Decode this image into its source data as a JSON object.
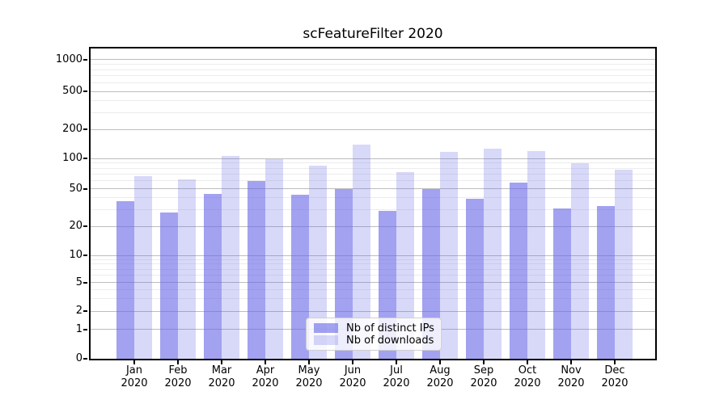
{
  "title": "scFeatureFilter 2020",
  "legend": {
    "items": [
      {
        "label": "Nb of distinct IPs",
        "color": "rgba(100,100,230,0.60)"
      },
      {
        "label": "Nb of downloads",
        "color": "rgba(100,100,230,0.25)"
      }
    ]
  },
  "y_axis": {
    "ticks": [
      0,
      1,
      2,
      5,
      10,
      20,
      50,
      100,
      200,
      500,
      1000
    ]
  },
  "x_axis": {
    "months": [
      "Jan",
      "Feb",
      "Mar",
      "Apr",
      "May",
      "Jun",
      "Jul",
      "Aug",
      "Sep",
      "Oct",
      "Nov",
      "Dec"
    ],
    "year": "2020"
  },
  "chart_data": {
    "type": "bar",
    "title": "scFeatureFilter 2020",
    "categories": [
      "Jan 2020",
      "Feb 2020",
      "Mar 2020",
      "Apr 2020",
      "May 2020",
      "Jun 2020",
      "Jul 2020",
      "Aug 2020",
      "Sep 2020",
      "Oct 2020",
      "Nov 2020",
      "Dec 2020"
    ],
    "series": [
      {
        "name": "Nb of distinct IPs",
        "color": "rgba(100,100,230,0.60)",
        "values": [
          37,
          28,
          44,
          60,
          43,
          50,
          29,
          50,
          39,
          57,
          31,
          33
        ]
      },
      {
        "name": "Nb of downloads",
        "color": "rgba(100,100,230,0.25)",
        "values": [
          66,
          62,
          107,
          98,
          85,
          139,
          73,
          116,
          126,
          118,
          90,
          77
        ]
      }
    ],
    "yscale": "pseudo-log",
    "y_ticks": [
      0,
      1,
      2,
      5,
      10,
      20,
      50,
      100,
      200,
      500,
      1000
    ],
    "ylim": [
      0,
      1200
    ],
    "grid": "horizontal major and minor",
    "legend_position": "inside bottom-center"
  }
}
